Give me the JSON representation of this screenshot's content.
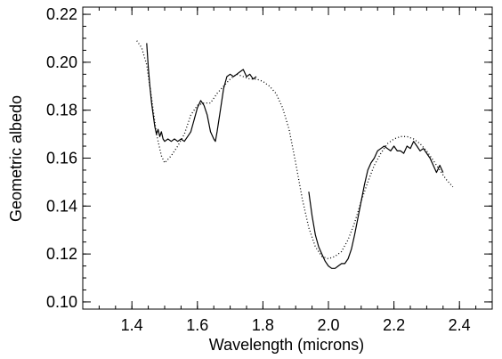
{
  "chart_data": {
    "type": "line",
    "title": "",
    "xlabel": "Wavelength (microns)",
    "ylabel": "Geometric albedo",
    "xlim": [
      1.25,
      2.5
    ],
    "ylim": [
      0.097,
      0.223
    ],
    "xticks": [
      {
        "value": 1.4,
        "label": "1.4"
      },
      {
        "value": 1.6,
        "label": "1.6"
      },
      {
        "value": 1.8,
        "label": "1.8"
      },
      {
        "value": 2.0,
        "label": "2.0"
      },
      {
        "value": 2.2,
        "label": "2.2"
      },
      {
        "value": 2.4,
        "label": "2.4"
      }
    ],
    "yticks": [
      {
        "value": 0.1,
        "label": "0.10"
      },
      {
        "value": 0.12,
        "label": "0.12"
      },
      {
        "value": 0.14,
        "label": "0.14"
      },
      {
        "value": 0.16,
        "label": "0.16"
      },
      {
        "value": 0.18,
        "label": "0.18"
      },
      {
        "value": 0.2,
        "label": "0.20"
      },
      {
        "value": 0.22,
        "label": "0.22"
      }
    ],
    "xminor_step": 0.05,
    "yminor_step": 0.005,
    "grid": false,
    "series": [
      {
        "style": "dotted",
        "x": [
          1.415,
          1.43,
          1.445,
          1.46,
          1.475,
          1.49,
          1.5,
          1.52,
          1.54,
          1.56,
          1.58,
          1.6,
          1.62,
          1.64,
          1.66,
          1.68,
          1.7,
          1.72,
          1.74,
          1.76,
          1.78,
          1.8,
          1.82,
          1.84,
          1.86,
          1.88,
          1.9,
          1.92,
          1.94,
          1.96,
          1.98,
          2.0,
          2.02,
          2.04,
          2.06,
          2.08,
          2.1,
          2.12,
          2.14,
          2.16,
          2.18,
          2.2,
          2.22,
          2.24,
          2.26,
          2.28,
          2.3,
          2.32,
          2.34,
          2.36,
          2.38
        ],
        "y": [
          0.209,
          0.206,
          0.199,
          0.185,
          0.17,
          0.161,
          0.158,
          0.161,
          0.165,
          0.17,
          0.178,
          0.182,
          0.183,
          0.183,
          0.187,
          0.19,
          0.193,
          0.195,
          0.194,
          0.193,
          0.193,
          0.192,
          0.19,
          0.187,
          0.181,
          0.172,
          0.158,
          0.143,
          0.131,
          0.123,
          0.119,
          0.118,
          0.119,
          0.121,
          0.126,
          0.133,
          0.142,
          0.15,
          0.157,
          0.162,
          0.166,
          0.168,
          0.169,
          0.169,
          0.168,
          0.166,
          0.163,
          0.159,
          0.155,
          0.151,
          0.148
        ]
      },
      {
        "style": "solid",
        "x": [
          1.445,
          1.45,
          1.455,
          1.46,
          1.465,
          1.47,
          1.475,
          1.48,
          1.485,
          1.49,
          1.495,
          1.5,
          1.51,
          1.52,
          1.53,
          1.54,
          1.55,
          1.56,
          1.57,
          1.58,
          1.59,
          1.6,
          1.61,
          1.62,
          1.63,
          1.64,
          1.65,
          1.655,
          1.66,
          1.67,
          1.68,
          1.69,
          1.7,
          1.71,
          1.72,
          1.73,
          1.74,
          1.75,
          1.76,
          1.77,
          1.78
        ],
        "y": [
          0.208,
          0.198,
          0.19,
          0.183,
          0.178,
          0.173,
          0.17,
          0.172,
          0.169,
          0.171,
          0.168,
          0.167,
          0.168,
          0.167,
          0.168,
          0.167,
          0.168,
          0.167,
          0.169,
          0.171,
          0.176,
          0.181,
          0.184,
          0.182,
          0.178,
          0.171,
          0.168,
          0.167,
          0.171,
          0.18,
          0.189,
          0.194,
          0.195,
          0.194,
          0.195,
          0.196,
          0.197,
          0.194,
          0.195,
          0.193,
          0.194
        ]
      },
      {
        "style": "solid",
        "x": [
          1.94,
          1.95,
          1.96,
          1.97,
          1.98,
          1.99,
          2.0,
          2.01,
          2.02,
          2.03,
          2.04,
          2.05,
          2.06,
          2.07,
          2.08,
          2.09,
          2.1,
          2.11,
          2.12,
          2.13,
          2.14,
          2.15,
          2.16,
          2.17,
          2.18,
          2.19,
          2.2,
          2.21,
          2.22,
          2.23,
          2.24,
          2.25,
          2.26,
          2.27,
          2.28,
          2.29,
          2.3,
          2.31,
          2.32,
          2.33,
          2.34,
          2.35
        ],
        "y": [
          0.146,
          0.136,
          0.128,
          0.123,
          0.12,
          0.117,
          0.115,
          0.114,
          0.114,
          0.115,
          0.116,
          0.116,
          0.118,
          0.122,
          0.128,
          0.135,
          0.142,
          0.149,
          0.155,
          0.158,
          0.16,
          0.163,
          0.164,
          0.165,
          0.164,
          0.163,
          0.165,
          0.163,
          0.163,
          0.162,
          0.165,
          0.164,
          0.167,
          0.165,
          0.163,
          0.164,
          0.162,
          0.16,
          0.157,
          0.154,
          0.157,
          0.154
        ]
      }
    ]
  }
}
